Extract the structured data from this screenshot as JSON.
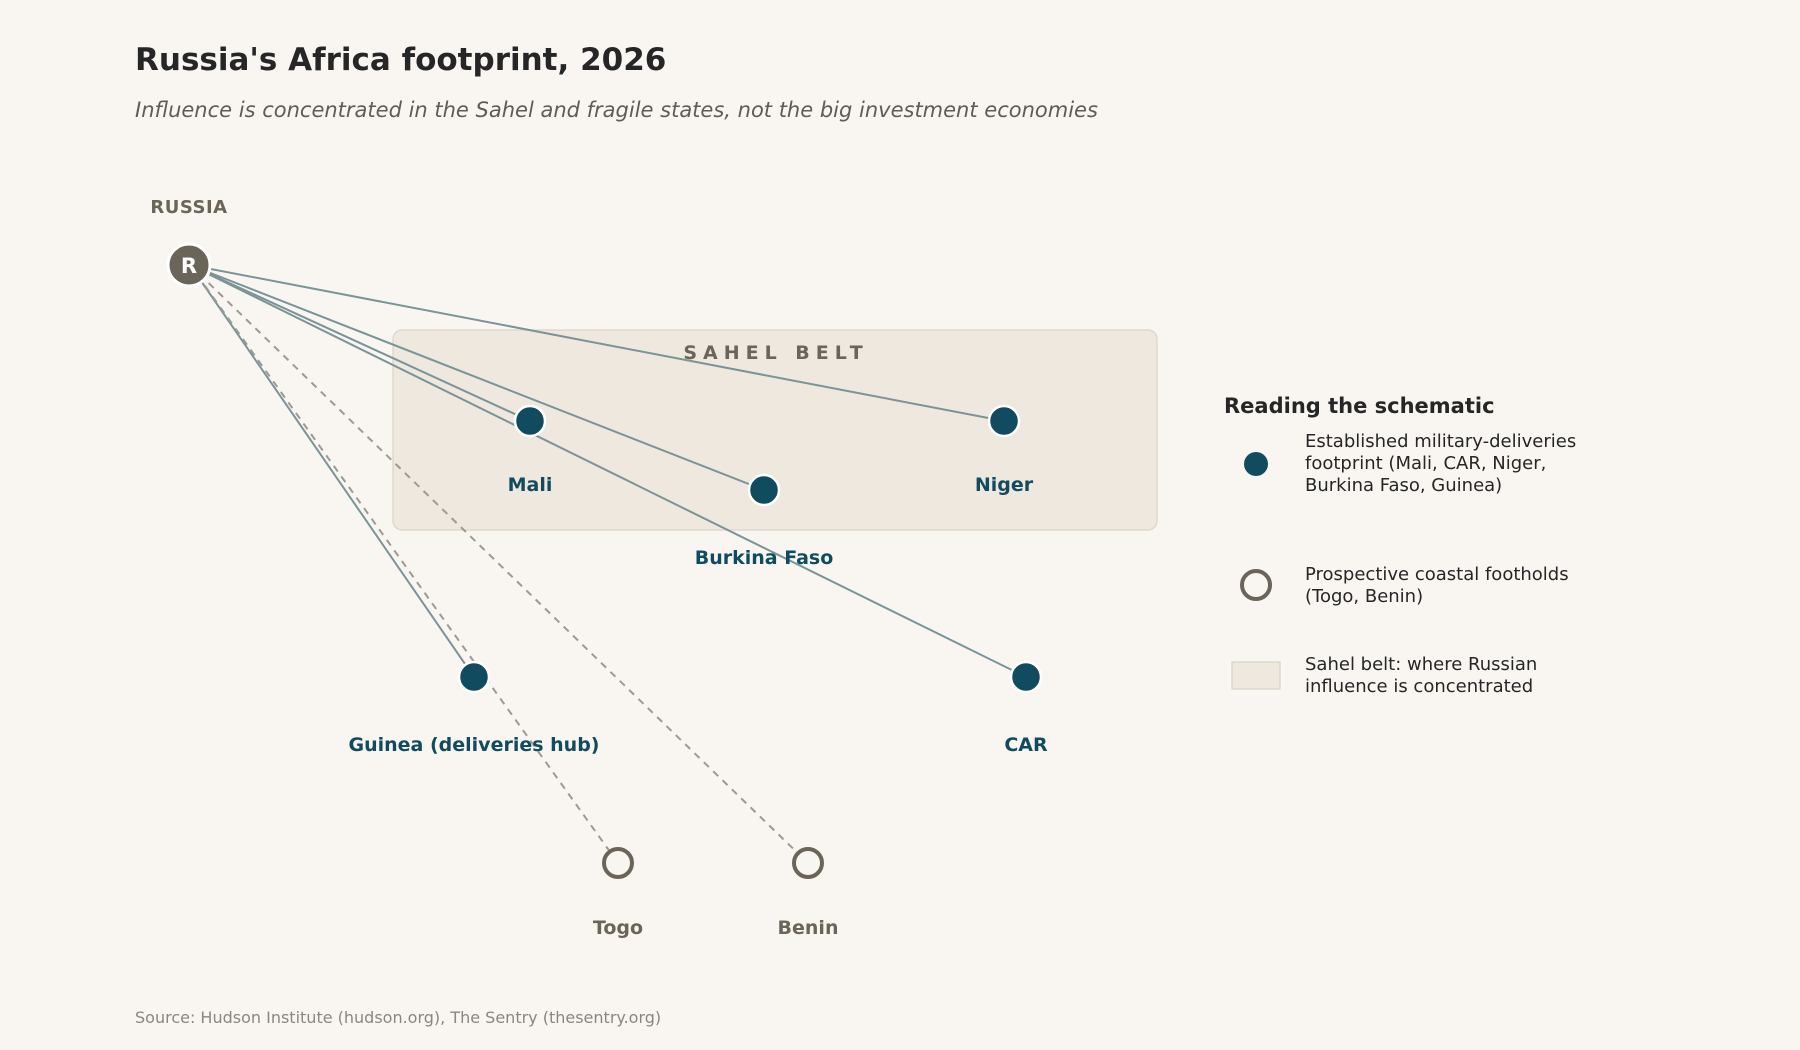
{
  "header": {
    "title": "Russia's Africa footprint, 2026",
    "subtitle": "Influence is concentrated in the Sahel and fragile states, not the big investment economies"
  },
  "hub": {
    "label": "RUSSIA",
    "letter": "R"
  },
  "sahel_belt": {
    "label": "SAHEL BELT"
  },
  "nodes": {
    "mali": {
      "label": "Mali",
      "status": "established"
    },
    "burkina": {
      "label": "Burkina Faso",
      "status": "established"
    },
    "niger": {
      "label": "Niger",
      "status": "established"
    },
    "guinea": {
      "label": "Guinea (deliveries hub)",
      "status": "established"
    },
    "car": {
      "label": "CAR",
      "status": "established"
    },
    "togo": {
      "label": "Togo",
      "status": "prospective"
    },
    "benin": {
      "label": "Benin",
      "status": "prospective"
    }
  },
  "legend": {
    "title": "Reading the schematic",
    "established": [
      "Established military-deliveries",
      "footprint (Mali, CAR, Niger,",
      "Burkina Faso, Guinea)"
    ],
    "prospective": [
      "Prospective coastal footholds",
      "(Togo, Benin)"
    ],
    "sahel": [
      "Sahel belt: where Russian",
      "influence is concentrated"
    ]
  },
  "source": "Source: Hudson Institute (hudson.org), The Sentry (thesentry.org)",
  "colors": {
    "background": "#f9f6f2",
    "established": "#114b5f",
    "prospective": "#6b6459",
    "hub": "#6b6459",
    "solid_link": "#7a9498",
    "dashed_link": "#9e9993",
    "sahel_fill": "#efe8de"
  }
}
